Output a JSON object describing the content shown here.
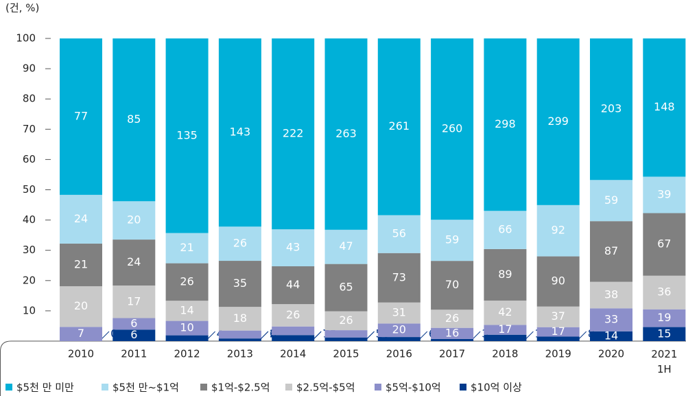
{
  "chart_data": {
    "type": "bar",
    "stacked": "percent",
    "unit_label": "(건, %)",
    "categories": [
      "2010",
      "2011",
      "2012",
      "2013",
      "2014",
      "2015",
      "2016",
      "2017",
      "2018",
      "2019",
      "2020",
      "2021 1H"
    ],
    "ylim": [
      0,
      100
    ],
    "yticks": [
      10,
      20,
      30,
      40,
      50,
      60,
      70,
      80,
      90,
      100
    ],
    "series": [
      {
        "name": "$10억 이상",
        "color": "#003a8c",
        "values": [
          0,
          6,
          4,
          2,
          7,
          5,
          6,
          3,
          11,
          8,
          14,
          15
        ]
      },
      {
        "name": "$5억-$10억",
        "color": "#8c8fca",
        "values": [
          7,
          6,
          10,
          6,
          10,
          10,
          20,
          16,
          17,
          17,
          33,
          19
        ]
      },
      {
        "name": "$2.5억-$5억",
        "color": "#c9c9c9",
        "values": [
          20,
          17,
          14,
          18,
          26,
          26,
          31,
          26,
          42,
          37,
          38,
          36
        ]
      },
      {
        "name": "$1억-$2.5억",
        "color": "#808080",
        "values": [
          21,
          24,
          26,
          35,
          44,
          65,
          73,
          70,
          89,
          90,
          87,
          67
        ]
      },
      {
        "name": "$5천 만~$1억",
        "color": "#a8dcf0",
        "values": [
          24,
          20,
          21,
          26,
          43,
          47,
          56,
          59,
          66,
          92,
          59,
          39
        ]
      },
      {
        "name": "$5천 만 미만",
        "color": "#00b0d8",
        "values": [
          77,
          85,
          135,
          143,
          222,
          263,
          261,
          260,
          298,
          299,
          203,
          148
        ]
      }
    ]
  }
}
